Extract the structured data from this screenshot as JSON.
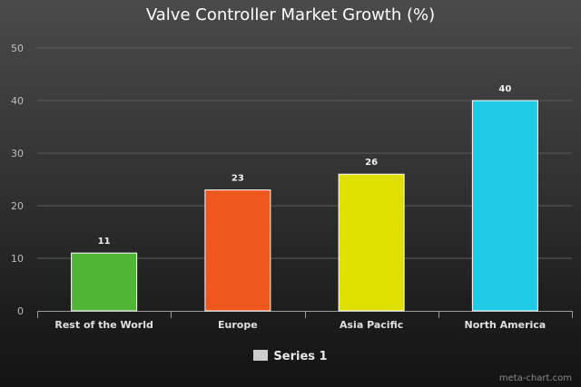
{
  "chart_data": {
    "type": "bar",
    "title": "Valve Controller Market Growth (%)",
    "categories": [
      "Rest of the World",
      "Europe",
      "Asia Pacific",
      "North America"
    ],
    "series": [
      {
        "name": "Series 1",
        "values": [
          11,
          23,
          26,
          40
        ]
      }
    ],
    "bar_colors": [
      "#4fb534",
      "#ee571e",
      "#dfdf00",
      "#21cbe6"
    ],
    "ylim": [
      0,
      50
    ],
    "yticks": [
      0,
      10,
      20,
      30,
      40,
      50
    ],
    "grid": true,
    "legend_position": "bottom-center",
    "data_labels": true
  },
  "watermark": "meta-chart.com"
}
